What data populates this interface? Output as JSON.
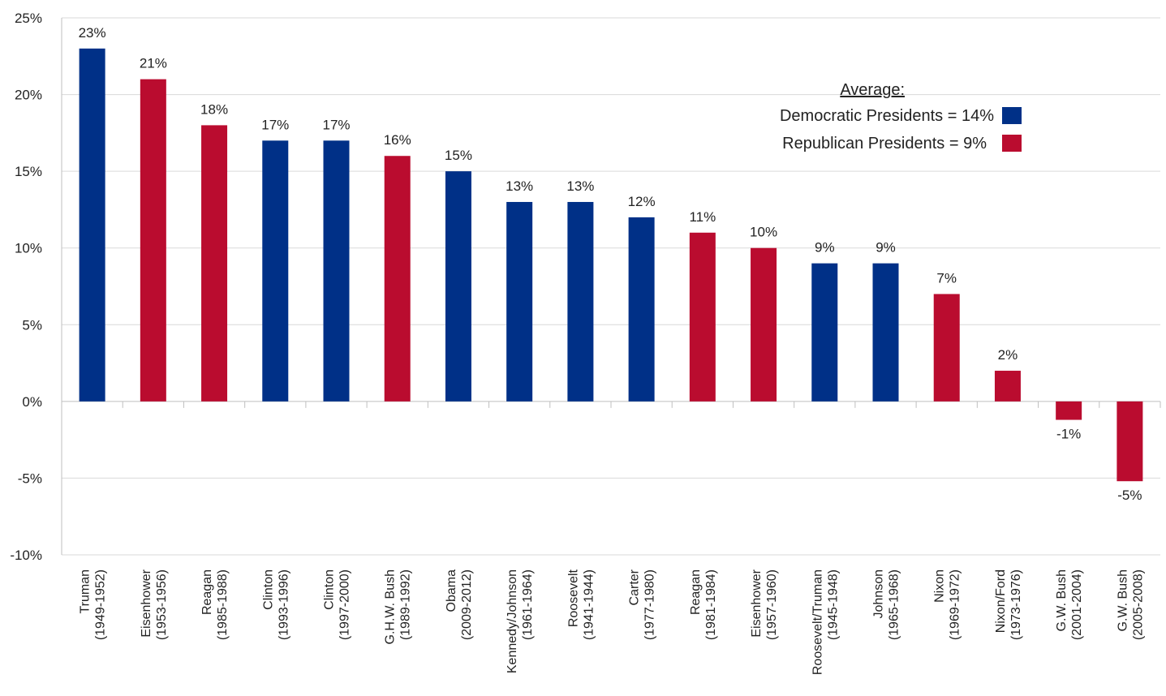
{
  "chart_data": {
    "type": "bar",
    "ylim": [
      -10,
      25
    ],
    "yticks": [
      25,
      20,
      15,
      10,
      5,
      0,
      -5,
      -10
    ],
    "ytick_labels": [
      "25%",
      "20%",
      "15%",
      "10%",
      "5%",
      "0%",
      "-5%",
      "-10%"
    ],
    "grid": true,
    "categories": [
      {
        "name": "Truman",
        "years": "(1949-1952)",
        "value": 23,
        "label": "23%",
        "party": "democratic"
      },
      {
        "name": "Eisenhower",
        "years": "(1953-1956)",
        "value": 21,
        "label": "21%",
        "party": "republican"
      },
      {
        "name": "Reagan",
        "years": "(1985-1988)",
        "value": 18,
        "label": "18%",
        "party": "republican"
      },
      {
        "name": "Clinton",
        "years": "(1993-1996)",
        "value": 17,
        "label": "17%",
        "party": "democratic"
      },
      {
        "name": "Clinton",
        "years": "(1997-2000)",
        "value": 17,
        "label": "17%",
        "party": "democratic"
      },
      {
        "name": "G.H.W. Bush",
        "years": "(1989-1992)",
        "value": 16,
        "label": "16%",
        "party": "republican"
      },
      {
        "name": "Obama",
        "years": "(2009-2012)",
        "value": 15,
        "label": "15%",
        "party": "democratic"
      },
      {
        "name": "Kennedy/Johnson",
        "years": "(1961-1964)",
        "value": 13,
        "label": "13%",
        "party": "democratic"
      },
      {
        "name": "Roosevelt",
        "years": "(1941-1944)",
        "value": 13,
        "label": "13%",
        "party": "democratic"
      },
      {
        "name": "Carter",
        "years": "(1977-1980)",
        "value": 12,
        "label": "12%",
        "party": "democratic"
      },
      {
        "name": "Reagan",
        "years": "(1981-1984)",
        "value": 11,
        "label": "11%",
        "party": "republican"
      },
      {
        "name": "Eisenhower",
        "years": "(1957-1960)",
        "value": 10,
        "label": "10%",
        "party": "republican"
      },
      {
        "name": "Roosevelt/Truman",
        "years": "(1945-1948)",
        "value": 9,
        "label": "9%",
        "party": "democratic"
      },
      {
        "name": "Johnson",
        "years": "(1965-1968)",
        "value": 9,
        "label": "9%",
        "party": "democratic"
      },
      {
        "name": "Nixon",
        "years": "(1969-1972)",
        "value": 7,
        "label": "7%",
        "party": "republican"
      },
      {
        "name": "Nixon/Ford",
        "years": "(1973-1976)",
        "value": 2,
        "label": "2%",
        "party": "republican"
      },
      {
        "name": "G.W. Bush",
        "years": "(2001-2004)",
        "value": -1.2,
        "label": "-1%",
        "party": "republican"
      },
      {
        "name": "G.W. Bush",
        "years": "(2005-2008)",
        "value": -5.2,
        "label": "-5%",
        "party": "republican"
      }
    ],
    "legend": {
      "title": "Average:",
      "placement": "top-right",
      "entries": [
        {
          "label": "Democratic Presidents = 14%",
          "party": "democratic"
        },
        {
          "label": "Republican Presidents = 9%",
          "party": "republican"
        }
      ]
    },
    "colors": {
      "democratic": "#003087",
      "republican": "#BA0C2F",
      "grid": "#d9d9d9",
      "axis": "#bfbfbf"
    }
  }
}
